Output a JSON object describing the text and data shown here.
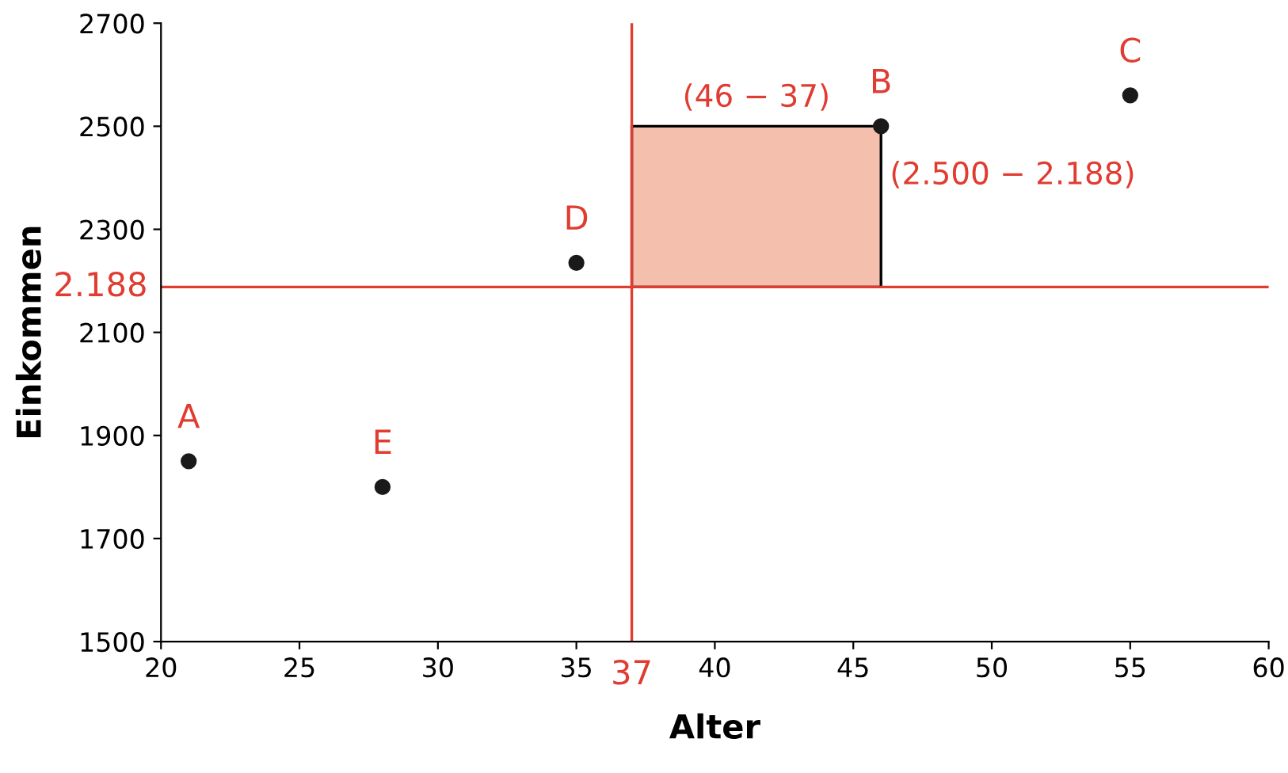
{
  "chart_data": {
    "type": "scatter",
    "xlabel": "Alter",
    "ylabel": "Einkommen",
    "xlim": [
      20,
      60
    ],
    "xticks": [
      20,
      25,
      30,
      35,
      40,
      45,
      50,
      55,
      60
    ],
    "ylim": [
      1500,
      2700
    ],
    "yticks": [
      1500,
      1700,
      1900,
      2100,
      2300,
      2500,
      2700
    ],
    "series": [
      {
        "x": [
          21,
          28,
          35,
          46,
          55
        ],
        "values": [
          1850,
          1800,
          2235,
          2500,
          2560
        ],
        "color": "#1a1a1a"
      }
    ],
    "marker": "circle",
    "grid": false,
    "ref_lines": [
      {
        "axis": "x",
        "value": 37,
        "label": "37",
        "color": "#e03c31"
      },
      {
        "axis": "y",
        "value": 2188,
        "label": "2.188",
        "color": "#e03c31"
      }
    ],
    "annotations": [
      {
        "text": "A",
        "x": 21,
        "y": 1850
      },
      {
        "text": "E",
        "x": 28,
        "y": 1800
      },
      {
        "text": "D",
        "x": 35,
        "y": 2235
      },
      {
        "text": "B",
        "x": 46,
        "y": 2500
      },
      {
        "text": "C",
        "x": 55,
        "y": 2560
      },
      "(46 − 37)",
      "(2.500 − 2.188)"
    ]
  }
}
